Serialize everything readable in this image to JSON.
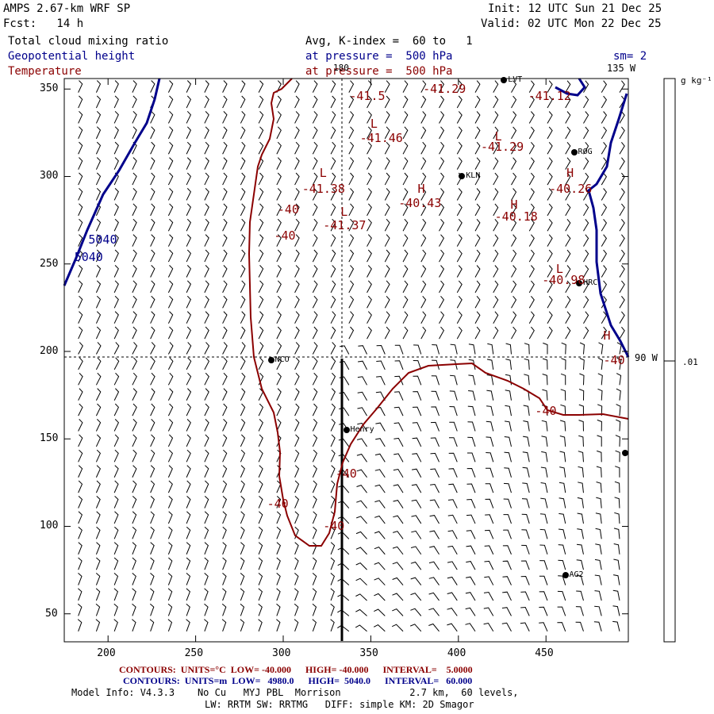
{
  "header": {
    "model": "AMPS 2.67-km WRF SP",
    "forecast": "Fcst:   14 h",
    "init": "Init: 12 UTC Sun 21 Dec 25",
    "valid": "Valid: 02 UTC Mon 22 Dec 25",
    "field1": "Total cloud mixing ratio",
    "field2": "Geopotential height",
    "field3": "Temperature",
    "avg": "Avg, K-index =  60 to   1",
    "pressure1": "at pressure =  500 hPa",
    "pressure2": "at pressure =  500 hPa",
    "smoothing": "sm= 2"
  },
  "map": {
    "x_ticks": [
      "200",
      "250",
      "300",
      "350",
      "400",
      "450"
    ],
    "y_ticks": [
      "350",
      "300",
      "250",
      "200",
      "150",
      "100",
      "50"
    ],
    "lon_top": "180",
    "lon_right_top": "135 W",
    "lon_right": "90 W",
    "stations": [
      {
        "name": "KLN",
        "x": 402,
        "y": 300
      },
      {
        "name": "ROG",
        "x": 466,
        "y": 314
      },
      {
        "name": "HRC",
        "x": 469,
        "y": 239
      },
      {
        "name": "NCO",
        "x": 293,
        "y": 195
      },
      {
        "name": "Henry",
        "x": 336,
        "y": 155
      },
      {
        "name": "AG2",
        "x": 461,
        "y": 72
      },
      {
        "name": "LVT",
        "x": 426,
        "y": 355
      },
      {
        "name": "",
        "x": 495,
        "y": 142
      }
    ],
    "height_labels": [
      {
        "text": "5040",
        "x": 196,
        "y": 264
      },
      {
        "text": "5040",
        "x": 188,
        "y": 254
      }
    ],
    "temp_labels": [
      {
        "text": "-41.5",
        "x": 345,
        "y": 346
      },
      {
        "text": "-41.29",
        "x": 387,
        "y": 350
      },
      {
        "text": "-41.12",
        "x": 447,
        "y": 346
      },
      {
        "text": "-41.46",
        "x": 351,
        "y": 322
      },
      {
        "text": "-41.29",
        "x": 420,
        "y": 317
      },
      {
        "text": "-41.38",
        "x": 318,
        "y": 293
      },
      {
        "text": "-40.43",
        "x": 373,
        "y": 285
      },
      {
        "text": "-40.26",
        "x": 459,
        "y": 293
      },
      {
        "text": "-41.37",
        "x": 330,
        "y": 272
      },
      {
        "text": "-40.18",
        "x": 428,
        "y": 277
      },
      {
        "text": "-40.98",
        "x": 455,
        "y": 241
      },
      {
        "text": "-40",
        "x": 304,
        "y": 281
      },
      {
        "text": "-40",
        "x": 302,
        "y": 266
      },
      {
        "text": "-40",
        "x": 490,
        "y": 195
      },
      {
        "text": "-40",
        "x": 451,
        "y": 166
      },
      {
        "text": "-40",
        "x": 337,
        "y": 130
      },
      {
        "text": "-40",
        "x": 298,
        "y": 113
      },
      {
        "text": "-40",
        "x": 330,
        "y": 100
      }
    ],
    "extrema": [
      {
        "text": "L",
        "x": 352,
        "y": 330
      },
      {
        "text": "L",
        "x": 423,
        "y": 323
      },
      {
        "text": "L",
        "x": 323,
        "y": 302
      },
      {
        "text": "H",
        "x": 379,
        "y": 293
      },
      {
        "text": "H",
        "x": 464,
        "y": 302
      },
      {
        "text": "L",
        "x": 335,
        "y": 280
      },
      {
        "text": "H",
        "x": 432,
        "y": 284
      },
      {
        "text": "L",
        "x": 458,
        "y": 247
      },
      {
        "text": "H",
        "x": 485,
        "y": 209
      }
    ]
  },
  "colorbar": {
    "units": "g kg⁻¹",
    "tick": ".01"
  },
  "footer": {
    "contours_temp": "CONTOURS:  UNITS=°C  LOW= -40.000      HIGH= -40.000      INTERVAL=    5.0000",
    "contours_height": "CONTOURS:  UNITS=m  LOW=   4980.0      HIGH=  5040.0      INTERVAL=   60.000",
    "model_info": "Model Info: V4.3.3    No Cu   MYJ PBL  Morrison            2.7 km,  60 levels,",
    "model_info2": "LW: RRTM SW: RRTMG   DIFF: simple KM: 2D Smagor"
  },
  "colors": {
    "height": "#00008b",
    "temperature": "#8b0000",
    "text": "#000000"
  }
}
